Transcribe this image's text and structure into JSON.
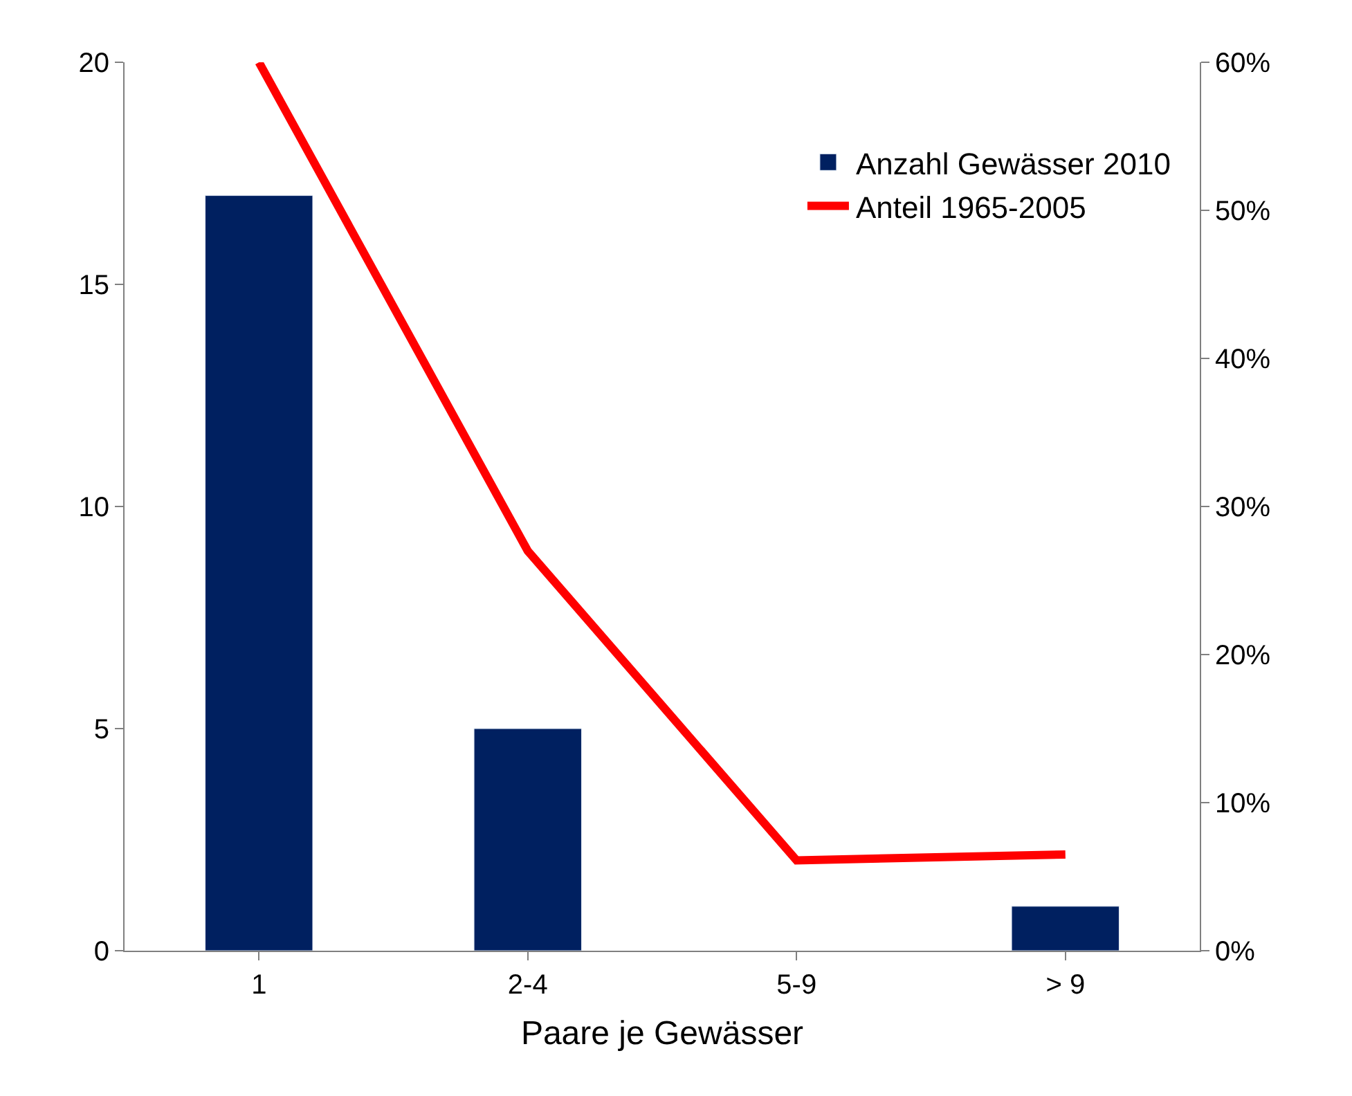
{
  "chart_data": {
    "type": "bar",
    "xlabel": "Paare je Gewässer",
    "categories": [
      "1",
      "2-4",
      "5-9",
      "> 9"
    ],
    "series": [
      {
        "name": "Anzahl Gewässer 2010",
        "color": "#002060",
        "values": [
          17,
          5,
          null,
          1
        ]
      },
      {
        "name": "Anteil 1965-2005",
        "type": "line",
        "axis": "y2",
        "color": "#ff0000",
        "values": [
          60,
          27,
          6.1,
          6.5
        ],
        "marker": "none",
        "line_style": "solid"
      }
    ],
    "ylim": [
      0,
      20
    ],
    "yticks": [
      0,
      5,
      10,
      15,
      20
    ],
    "y2lim": [
      0,
      60
    ],
    "y2ticks": [
      {
        "value": 0,
        "label": "0%"
      },
      {
        "value": 10,
        "label": "10%"
      },
      {
        "value": 20,
        "label": "20%"
      },
      {
        "value": 30,
        "label": "30%"
      },
      {
        "value": 40,
        "label": "40%"
      },
      {
        "value": 50,
        "label": "50%"
      },
      {
        "value": 60,
        "label": "60%"
      }
    ],
    "legend": "top right"
  }
}
